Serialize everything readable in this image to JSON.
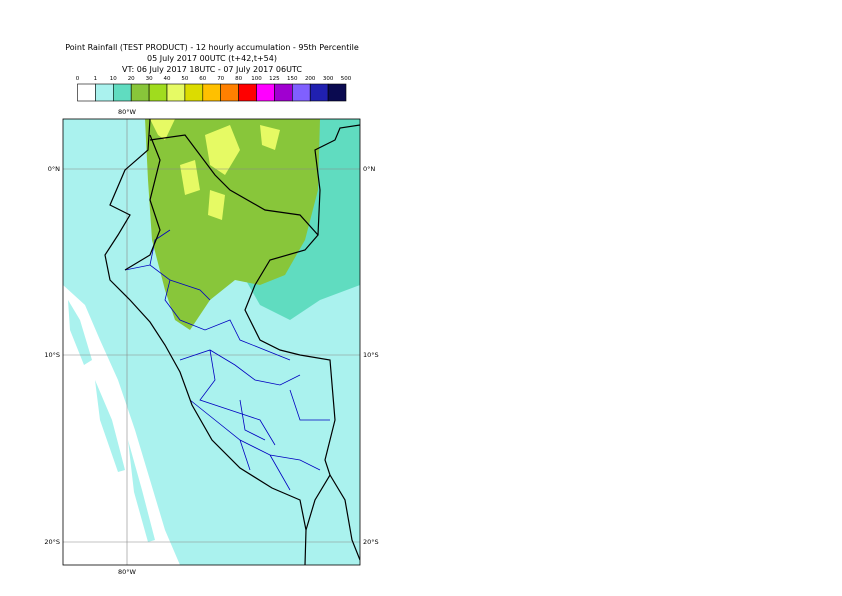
{
  "header": {
    "title": "Point Rainfall (TEST PRODUCT) - 12 hourly accumulation - 95th Percentile",
    "base_time": "05 July 2017 00UTC (t+42,t+54)",
    "valid_time": "VT: 06 July 2017 18UTC - 07 July 2017 06UTC"
  },
  "legend": {
    "labels": [
      0,
      1,
      10,
      20,
      30,
      40,
      50,
      60,
      70,
      80,
      100,
      125,
      150,
      200,
      300,
      500
    ],
    "colors": [
      "#ffffff",
      "#aaf2ee",
      "#60dcc0",
      "#88c63a",
      "#a0dc1e",
      "#e6fa64",
      "#dcdc00",
      "#ffc000",
      "#ff8000",
      "#ff0000",
      "#ff00ff",
      "#a000d0",
      "#8060ff",
      "#2020b0",
      "#0a0a50"
    ]
  },
  "map": {
    "lon_labels": [
      "80°W",
      "80°W"
    ],
    "lat_labels": [
      "0°N",
      "10°S",
      "20°S"
    ]
  }
}
